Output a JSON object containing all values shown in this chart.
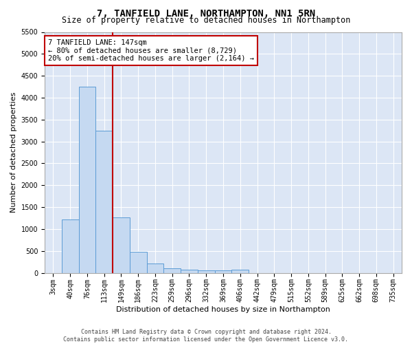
{
  "title": "7, TANFIELD LANE, NORTHAMPTON, NN1 5RN",
  "subtitle": "Size of property relative to detached houses in Northampton",
  "xlabel": "Distribution of detached houses by size in Northampton",
  "ylabel": "Number of detached properties",
  "footer_line1": "Contains HM Land Registry data © Crown copyright and database right 2024.",
  "footer_line2": "Contains public sector information licensed under the Open Government Licence v3.0.",
  "categories": [
    "3sqm",
    "40sqm",
    "76sqm",
    "113sqm",
    "149sqm",
    "186sqm",
    "223sqm",
    "259sqm",
    "296sqm",
    "332sqm",
    "369sqm",
    "406sqm",
    "442sqm",
    "479sqm",
    "515sqm",
    "552sqm",
    "589sqm",
    "625sqm",
    "662sqm",
    "698sqm",
    "735sqm"
  ],
  "values": [
    0,
    1220,
    4250,
    3250,
    1270,
    475,
    220,
    105,
    75,
    55,
    50,
    75,
    0,
    0,
    0,
    0,
    0,
    0,
    0,
    0,
    0
  ],
  "bar_color": "#c5d9f1",
  "bar_edge_color": "#5b9bd5",
  "vline_color": "#c00000",
  "annotation_line1": "7 TANFIELD LANE: 147sqm",
  "annotation_line2": "← 80% of detached houses are smaller (8,729)",
  "annotation_line3": "20% of semi-detached houses are larger (2,164) →",
  "annotation_box_color": "#ffffff",
  "annotation_box_edge_color": "#c00000",
  "ylim": [
    0,
    5500
  ],
  "yticks": [
    0,
    500,
    1000,
    1500,
    2000,
    2500,
    3000,
    3500,
    4000,
    4500,
    5000,
    5500
  ],
  "bg_color": "#ffffff",
  "plot_bg_color": "#dce6f5",
  "grid_color": "#ffffff",
  "title_fontsize": 10,
  "subtitle_fontsize": 8.5,
  "xlabel_fontsize": 8,
  "ylabel_fontsize": 8,
  "tick_fontsize": 7,
  "annotation_fontsize": 7.5,
  "footer_fontsize": 6
}
